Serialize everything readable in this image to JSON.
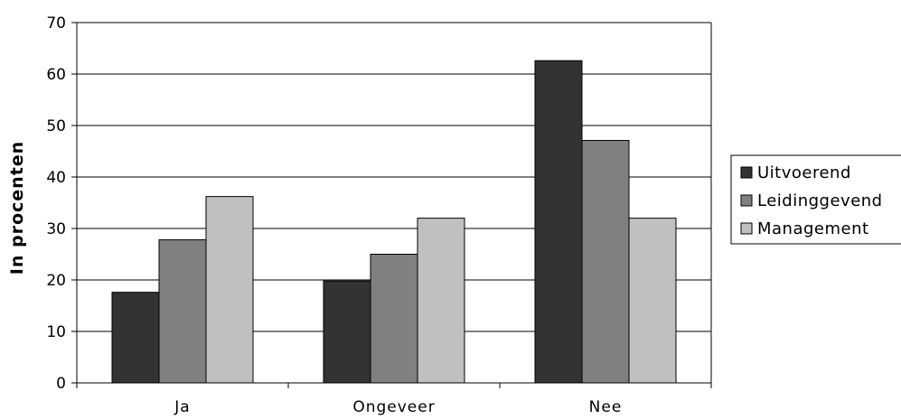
{
  "chart_data": {
    "type": "bar",
    "title": "",
    "xlabel": "",
    "ylabel": "In procenten",
    "ylim": [
      0,
      70
    ],
    "yticks": [
      0,
      10,
      20,
      30,
      40,
      50,
      60,
      70
    ],
    "categories": [
      "Ja",
      "Ongeveer",
      "Nee"
    ],
    "series": [
      {
        "name": "Uitvoerend",
        "values": [
          17.6,
          19.8,
          62.6
        ],
        "color": "#333333"
      },
      {
        "name": "Leidinggevend",
        "values": [
          27.8,
          25.0,
          47.1
        ],
        "color": "#808080"
      },
      {
        "name": "Management",
        "values": [
          36.2,
          32.0,
          32.0
        ],
        "color": "#c0c0c0"
      }
    ],
    "grid": true,
    "legend": "right"
  }
}
